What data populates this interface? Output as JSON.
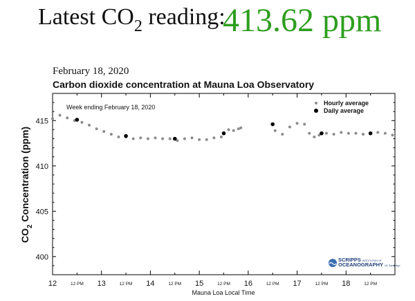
{
  "headline": {
    "label_main": "Latest CO",
    "label_sub": "2",
    "label_tail": " reading:",
    "value": "413.62 ppm",
    "value_color": "#2e9e1f"
  },
  "chart_data": {
    "type": "scatter",
    "date": "February 18, 2020",
    "title": "Carbon dioxide concentration at Mauna Loa Observatory",
    "annotation": "Week ending February 18, 2020",
    "xlabel": "Mauna Loa Local Time",
    "ylabel_main": "CO",
    "ylabel_sub": "2",
    "ylabel_tail": " Concentration (ppm)",
    "xlim": [
      12,
      19
    ],
    "ylim": [
      398,
      418
    ],
    "yticks": [
      400,
      405,
      410,
      415
    ],
    "day_ticks": [
      12,
      13,
      14,
      15,
      16,
      17,
      18
    ],
    "noon_label": "12 PM",
    "noon_ticks": [
      12.5,
      13.5,
      14.5,
      15.5,
      16.5,
      17.5,
      18.5
    ],
    "legend": {
      "placement": "top-right",
      "hourly": "Hourly average",
      "daily": "Daily average"
    },
    "logo": {
      "line1": "SCRIPPS",
      "line1_small": "INSTITUTION OF",
      "line2": "OCEANOGRAPHY",
      "line2_small": "UC San Diego"
    },
    "colors": {
      "hourly": "#8c8c8c",
      "daily": "#000000"
    },
    "series": [
      {
        "name": "Hourly average",
        "segments": [
          {
            "x": [
              12.0,
              12.15,
              12.3,
              12.45,
              12.6,
              12.75,
              12.9,
              13.05,
              13.2,
              13.35,
              13.5,
              13.65,
              13.8,
              13.95,
              14.1,
              14.25,
              14.4,
              14.55,
              14.7,
              14.85,
              15.0,
              15.15,
              15.3,
              15.45,
              15.5,
              15.6,
              15.7,
              15.8,
              15.85
            ],
            "y": [
              415.2,
              415.6,
              415.3,
              415.0,
              414.8,
              414.5,
              414.1,
              413.8,
              413.5,
              413.2,
              413.2,
              413.0,
              413.1,
              413.0,
              413.1,
              413.0,
              413.0,
              412.8,
              413.0,
              413.1,
              412.9,
              412.9,
              413.1,
              413.2,
              413.6,
              414.0,
              413.9,
              414.1,
              414.2
            ]
          },
          {
            "x": [
              16.55,
              16.7,
              16.85,
              17.0,
              17.15,
              17.25,
              17.35,
              17.45,
              17.6,
              17.75,
              17.9,
              18.05,
              18.2,
              18.35,
              18.5,
              18.65,
              18.8,
              18.95
            ],
            "y": [
              413.9,
              413.5,
              414.3,
              414.7,
              414.6,
              413.6,
              413.2,
              413.4,
              413.6,
              413.5,
              413.7,
              413.6,
              413.6,
              413.5,
              413.6,
              413.7,
              413.6,
              413.4
            ]
          }
        ]
      },
      {
        "name": "Daily average",
        "x": [
          12.5,
          13.5,
          14.5,
          15.5,
          16.5,
          17.5,
          18.5
        ],
        "y": [
          415.1,
          413.3,
          413.0,
          413.6,
          414.6,
          413.6,
          413.6
        ]
      }
    ]
  }
}
